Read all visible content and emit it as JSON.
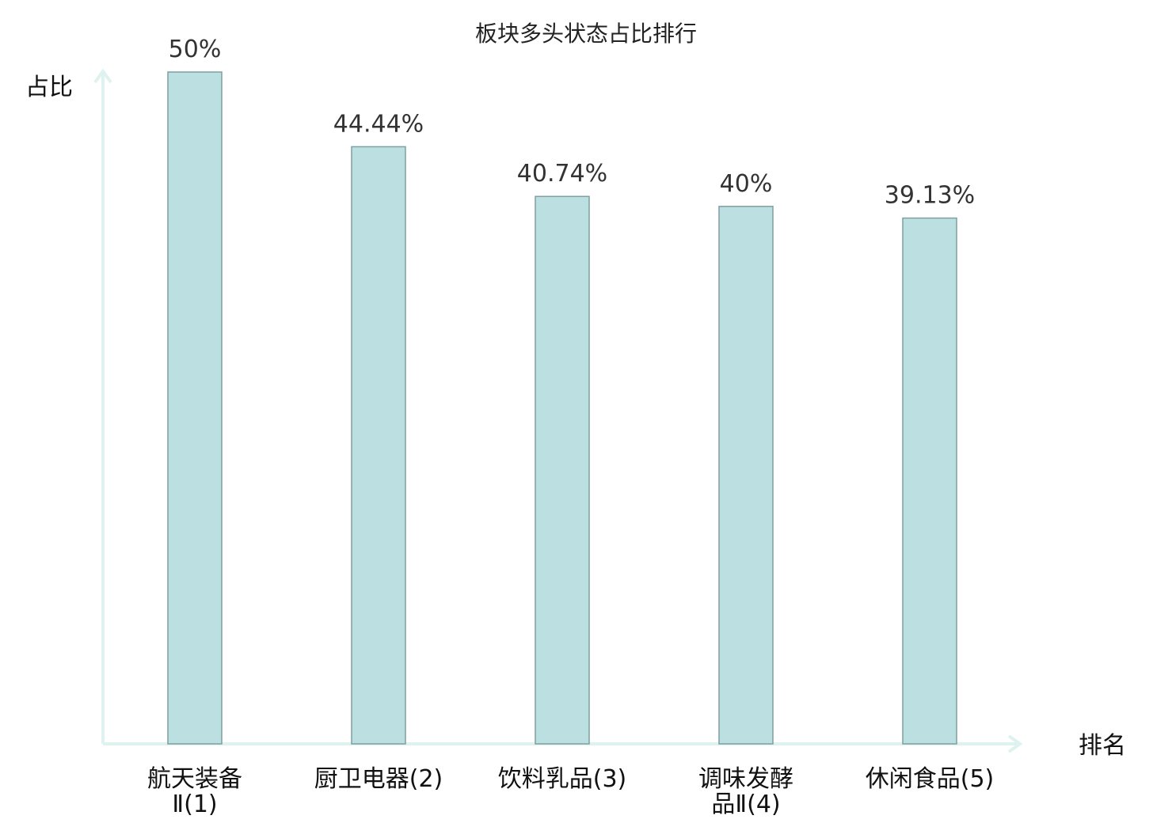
{
  "chart_data": {
    "type": "bar",
    "title": "板块多头状态占比排行",
    "xlabel": "排名",
    "ylabel": "占比",
    "categories": [
      [
        "航天装备",
        "Ⅱ(1)"
      ],
      [
        "厨卫电器(2)"
      ],
      [
        "饮料乳品(3)"
      ],
      [
        "调味发酵",
        "品Ⅱ(4)"
      ],
      [
        "休闲食品(5)"
      ]
    ],
    "values": [
      50,
      44.44,
      40.74,
      40,
      39.13
    ],
    "value_labels": [
      "50%",
      "44.44%",
      "40.74%",
      "40%",
      "39.13%"
    ],
    "highlight_index": 3,
    "ylim": [
      0,
      50
    ],
    "grid": false,
    "colors": {
      "bar_fill": "#bce0e2",
      "bar_stroke": "#7f9fa1",
      "axis": "#def2ef",
      "highlight_text": "#e8141a",
      "text": "#111111"
    }
  }
}
